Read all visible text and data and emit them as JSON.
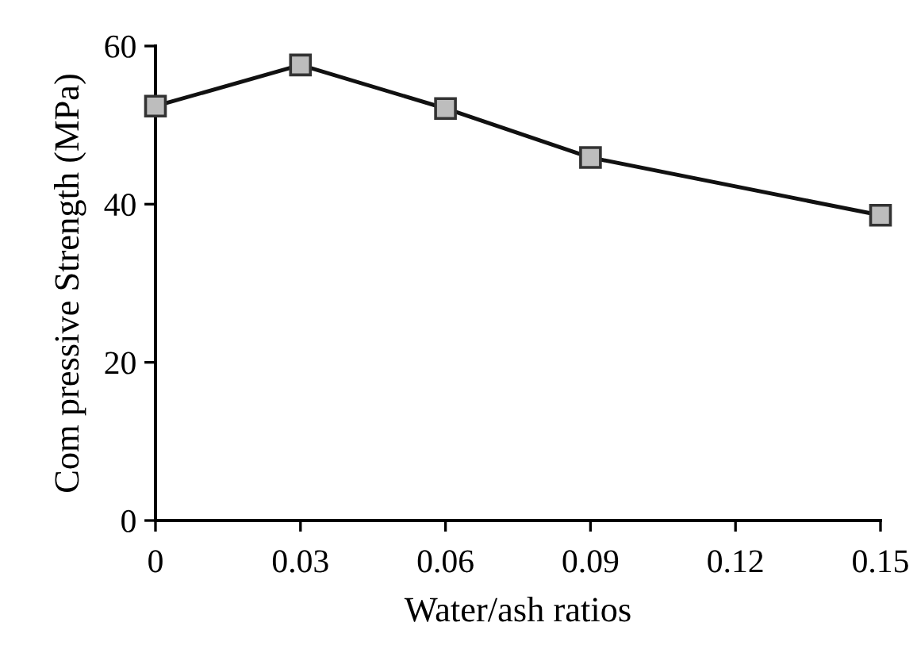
{
  "chart_data": {
    "type": "line",
    "xlabel": "Water/ash ratios",
    "ylabel": "Com pressive Strength (MPa)",
    "x": [
      0,
      0.03,
      0.06,
      0.09,
      0.15
    ],
    "series": [
      {
        "color": "#111111",
        "values": [
          52.4,
          57.6,
          52.1,
          45.9,
          38.6
        ]
      }
    ],
    "xlim": [
      0,
      0.15
    ],
    "xticks": [
      0,
      0.03,
      0.06,
      0.09,
      0.12,
      0.15
    ],
    "ylim": [
      0,
      60
    ],
    "yticks": [
      0,
      20,
      40,
      60
    ],
    "marker": "square",
    "line_style": "solid",
    "grid": false,
    "legend": false
  }
}
